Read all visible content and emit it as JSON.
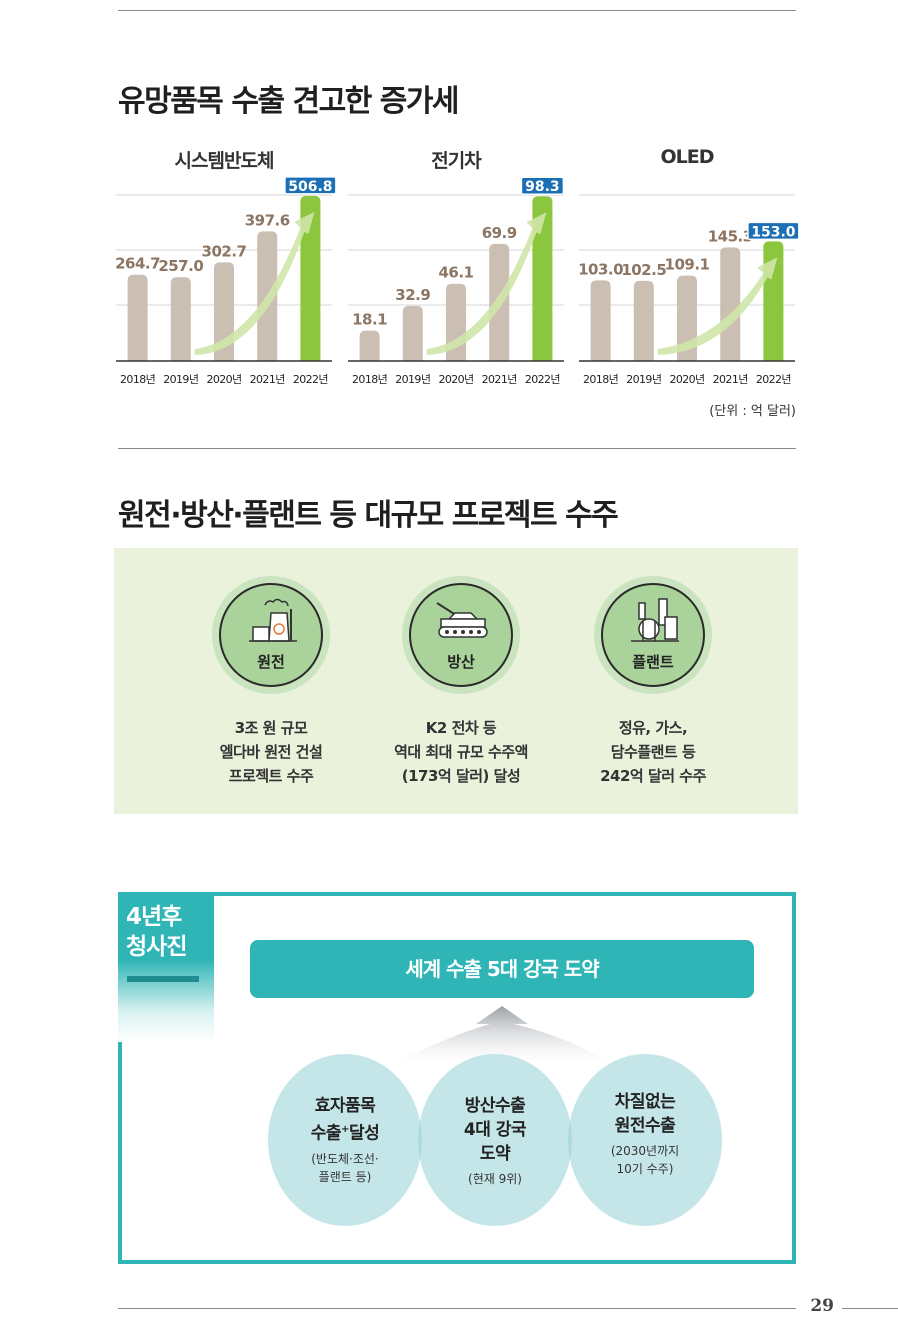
{
  "section1": {
    "title": "유망품목 수출 견고한 증가세",
    "unit_note": "(단위 : 억 달러)"
  },
  "chart_data": [
    {
      "type": "bar",
      "title": "시스템반도체",
      "categories": [
        "2018년",
        "2019년",
        "2020년",
        "2021년",
        "2022년"
      ],
      "values": [
        264.7,
        257.0,
        302.7,
        397.6,
        506.8
      ],
      "ylim": [
        0,
        540
      ],
      "highlight_color": "#8cc63e",
      "bar_color": "#cbbfb3"
    },
    {
      "type": "bar",
      "title": "전기차",
      "categories": [
        "2018년",
        "2019년",
        "2020년",
        "2021년",
        "2022년"
      ],
      "values": [
        18.1,
        32.9,
        46.1,
        69.9,
        98.3
      ],
      "ylim": [
        0,
        105
      ],
      "highlight_color": "#8cc63e",
      "bar_color": "#cbbfb3"
    },
    {
      "type": "bar",
      "title": "OLED",
      "categories": [
        "2018년",
        "2019년",
        "2020년",
        "2021년",
        "2022년"
      ],
      "values": [
        103.0,
        102.5,
        109.1,
        145.3,
        153.0
      ],
      "ylim": [
        0,
        225
      ],
      "highlight_color": "#8cc63e",
      "bar_color": "#cbbfb3"
    }
  ],
  "section2": {
    "title": "원전·방산·플랜트 등 대규모 프로젝트 수주",
    "projects": [
      {
        "icon": "nuclear-plant-icon",
        "label": "원전",
        "lines": [
          "3조 원 규모",
          "엘다바 원전 건설",
          "프로젝트 수주"
        ]
      },
      {
        "icon": "tank-icon",
        "label": "방산",
        "lines": [
          "K2 전차 등",
          "역대 최대 규모 수주액",
          "(173억 달러) 달성"
        ]
      },
      {
        "icon": "refinery-icon",
        "label": "플랜트",
        "lines": [
          "정유, 가스,",
          "담수플랜트 등",
          "242억 달러 수주"
        ]
      }
    ]
  },
  "vision": {
    "tab_line1": "4년후",
    "tab_line2": "청사진",
    "goal": "세계 수출 5대 강국 도약",
    "bubbles": [
      {
        "title1": "효자품목",
        "title2a": "수출",
        "title2sup": "+",
        "title2b": "달성",
        "sub1": "(반도체·조선·",
        "sub2": "플랜트 등)"
      },
      {
        "title1": "방산수출",
        "title2": "4대 강국",
        "title3": "도약",
        "sub1": "(현재 9위)"
      },
      {
        "title1": "차질없는",
        "title2": "원전수출",
        "sub1": "(2030년까지",
        "sub2": "10기 수주)"
      }
    ],
    "accent_color": "#2fb5b6"
  },
  "page_number": "29"
}
